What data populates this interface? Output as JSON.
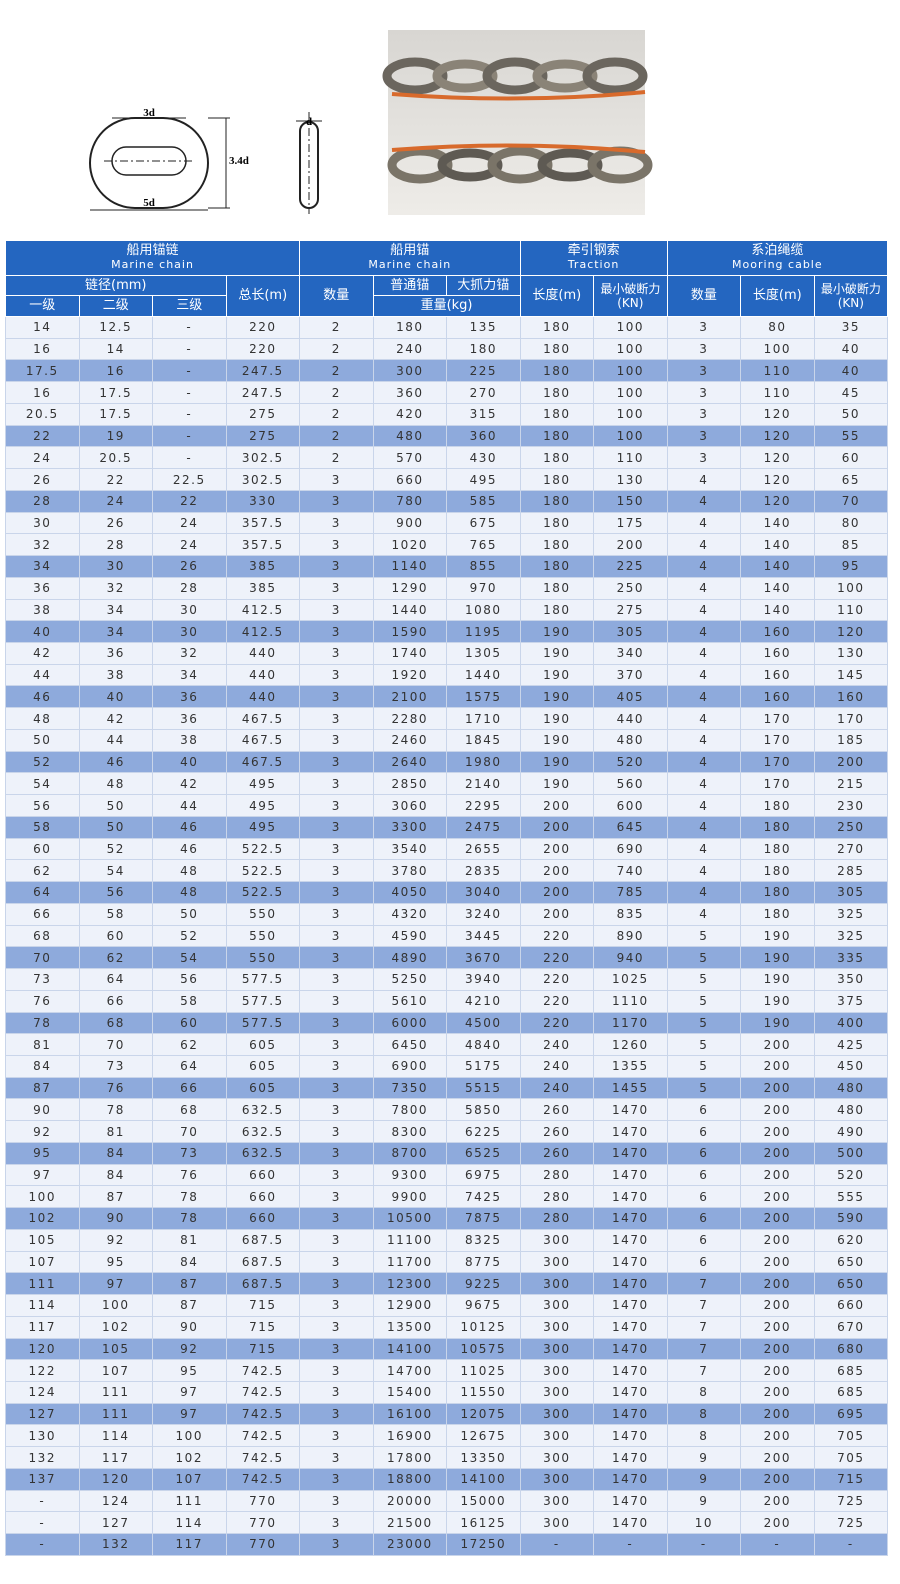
{
  "diagram": {
    "labels": [
      "3d",
      "3.4d",
      "5d",
      "d"
    ]
  },
  "table": {
    "groups": [
      {
        "zh": "船用锚链",
        "en": "Marine chain"
      },
      {
        "zh": "船用锚",
        "en": "Marine chain"
      },
      {
        "zh": "牵引钢索",
        "en": "Traction"
      },
      {
        "zh": "系泊绳缆",
        "en": "Mooring cable"
      }
    ],
    "headers": [
      "链径(mm)",
      "总长(m)",
      "数量",
      "普通锚",
      "大抓力锚",
      "长度(m)",
      "最小破断力(KN)",
      "数量",
      "长度(m)",
      "最小破断力(KN)"
    ],
    "subheaders": [
      "一级",
      "二级",
      "三级",
      "重量(kg)"
    ],
    "rows": [
      [
        "14",
        "12.5",
        "-",
        "220",
        "2",
        "180",
        "135",
        "180",
        "100",
        "3",
        "80",
        "35"
      ],
      [
        "16",
        "14",
        "-",
        "220",
        "2",
        "240",
        "180",
        "180",
        "100",
        "3",
        "100",
        "40"
      ],
      [
        "17.5",
        "16",
        "-",
        "247.5",
        "2",
        "300",
        "225",
        "180",
        "100",
        "3",
        "110",
        "40"
      ],
      [
        "16",
        "17.5",
        "-",
        "247.5",
        "2",
        "360",
        "270",
        "180",
        "100",
        "3",
        "110",
        "45"
      ],
      [
        "20.5",
        "17.5",
        "-",
        "275",
        "2",
        "420",
        "315",
        "180",
        "100",
        "3",
        "120",
        "50"
      ],
      [
        "22",
        "19",
        "-",
        "275",
        "2",
        "480",
        "360",
        "180",
        "100",
        "3",
        "120",
        "55"
      ],
      [
        "24",
        "20.5",
        "-",
        "302.5",
        "2",
        "570",
        "430",
        "180",
        "110",
        "3",
        "120",
        "60"
      ],
      [
        "26",
        "22",
        "22.5",
        "302.5",
        "3",
        "660",
        "495",
        "180",
        "130",
        "4",
        "120",
        "65"
      ],
      [
        "28",
        "24",
        "22",
        "330",
        "3",
        "780",
        "585",
        "180",
        "150",
        "4",
        "120",
        "70"
      ],
      [
        "30",
        "26",
        "24",
        "357.5",
        "3",
        "900",
        "675",
        "180",
        "175",
        "4",
        "140",
        "80"
      ],
      [
        "32",
        "28",
        "24",
        "357.5",
        "3",
        "1020",
        "765",
        "180",
        "200",
        "4",
        "140",
        "85"
      ],
      [
        "34",
        "30",
        "26",
        "385",
        "3",
        "1140",
        "855",
        "180",
        "225",
        "4",
        "140",
        "95"
      ],
      [
        "36",
        "32",
        "28",
        "385",
        "3",
        "1290",
        "970",
        "180",
        "250",
        "4",
        "140",
        "100"
      ],
      [
        "38",
        "34",
        "30",
        "412.5",
        "3",
        "1440",
        "1080",
        "180",
        "275",
        "4",
        "140",
        "110"
      ],
      [
        "40",
        "34",
        "30",
        "412.5",
        "3",
        "1590",
        "1195",
        "190",
        "305",
        "4",
        "160",
        "120"
      ],
      [
        "42",
        "36",
        "32",
        "440",
        "3",
        "1740",
        "1305",
        "190",
        "340",
        "4",
        "160",
        "130"
      ],
      [
        "44",
        "38",
        "34",
        "440",
        "3",
        "1920",
        "1440",
        "190",
        "370",
        "4",
        "160",
        "145"
      ],
      [
        "46",
        "40",
        "36",
        "440",
        "3",
        "2100",
        "1575",
        "190",
        "405",
        "4",
        "160",
        "160"
      ],
      [
        "48",
        "42",
        "36",
        "467.5",
        "3",
        "2280",
        "1710",
        "190",
        "440",
        "4",
        "170",
        "170"
      ],
      [
        "50",
        "44",
        "38",
        "467.5",
        "3",
        "2460",
        "1845",
        "190",
        "480",
        "4",
        "170",
        "185"
      ],
      [
        "52",
        "46",
        "40",
        "467.5",
        "3",
        "2640",
        "1980",
        "190",
        "520",
        "4",
        "170",
        "200"
      ],
      [
        "54",
        "48",
        "42",
        "495",
        "3",
        "2850",
        "2140",
        "190",
        "560",
        "4",
        "170",
        "215"
      ],
      [
        "56",
        "50",
        "44",
        "495",
        "3",
        "3060",
        "2295",
        "200",
        "600",
        "4",
        "180",
        "230"
      ],
      [
        "58",
        "50",
        "46",
        "495",
        "3",
        "3300",
        "2475",
        "200",
        "645",
        "4",
        "180",
        "250"
      ],
      [
        "60",
        "52",
        "46",
        "522.5",
        "3",
        "3540",
        "2655",
        "200",
        "690",
        "4",
        "180",
        "270"
      ],
      [
        "62",
        "54",
        "48",
        "522.5",
        "3",
        "3780",
        "2835",
        "200",
        "740",
        "4",
        "180",
        "285"
      ],
      [
        "64",
        "56",
        "48",
        "522.5",
        "3",
        "4050",
        "3040",
        "200",
        "785",
        "4",
        "180",
        "305"
      ],
      [
        "66",
        "58",
        "50",
        "550",
        "3",
        "4320",
        "3240",
        "200",
        "835",
        "4",
        "180",
        "325"
      ],
      [
        "68",
        "60",
        "52",
        "550",
        "3",
        "4590",
        "3445",
        "220",
        "890",
        "5",
        "190",
        "325"
      ],
      [
        "70",
        "62",
        "54",
        "550",
        "3",
        "4890",
        "3670",
        "220",
        "940",
        "5",
        "190",
        "335"
      ],
      [
        "73",
        "64",
        "56",
        "577.5",
        "3",
        "5250",
        "3940",
        "220",
        "1025",
        "5",
        "190",
        "350"
      ],
      [
        "76",
        "66",
        "58",
        "577.5",
        "3",
        "5610",
        "4210",
        "220",
        "1110",
        "5",
        "190",
        "375"
      ],
      [
        "78",
        "68",
        "60",
        "577.5",
        "3",
        "6000",
        "4500",
        "220",
        "1170",
        "5",
        "190",
        "400"
      ],
      [
        "81",
        "70",
        "62",
        "605",
        "3",
        "6450",
        "4840",
        "240",
        "1260",
        "5",
        "200",
        "425"
      ],
      [
        "84",
        "73",
        "64",
        "605",
        "3",
        "6900",
        "5175",
        "240",
        "1355",
        "5",
        "200",
        "450"
      ],
      [
        "87",
        "76",
        "66",
        "605",
        "3",
        "7350",
        "5515",
        "240",
        "1455",
        "5",
        "200",
        "480"
      ],
      [
        "90",
        "78",
        "68",
        "632.5",
        "3",
        "7800",
        "5850",
        "260",
        "1470",
        "6",
        "200",
        "480"
      ],
      [
        "92",
        "81",
        "70",
        "632.5",
        "3",
        "8300",
        "6225",
        "260",
        "1470",
        "6",
        "200",
        "490"
      ],
      [
        "95",
        "84",
        "73",
        "632.5",
        "3",
        "8700",
        "6525",
        "260",
        "1470",
        "6",
        "200",
        "500"
      ],
      [
        "97",
        "84",
        "76",
        "660",
        "3",
        "9300",
        "6975",
        "280",
        "1470",
        "6",
        "200",
        "520"
      ],
      [
        "100",
        "87",
        "78",
        "660",
        "3",
        "9900",
        "7425",
        "280",
        "1470",
        "6",
        "200",
        "555"
      ],
      [
        "102",
        "90",
        "78",
        "660",
        "3",
        "10500",
        "7875",
        "280",
        "1470",
        "6",
        "200",
        "590"
      ],
      [
        "105",
        "92",
        "81",
        "687.5",
        "3",
        "11100",
        "8325",
        "300",
        "1470",
        "6",
        "200",
        "620"
      ],
      [
        "107",
        "95",
        "84",
        "687.5",
        "3",
        "11700",
        "8775",
        "300",
        "1470",
        "6",
        "200",
        "650"
      ],
      [
        "111",
        "97",
        "87",
        "687.5",
        "3",
        "12300",
        "9225",
        "300",
        "1470",
        "7",
        "200",
        "650"
      ],
      [
        "114",
        "100",
        "87",
        "715",
        "3",
        "12900",
        "9675",
        "300",
        "1470",
        "7",
        "200",
        "660"
      ],
      [
        "117",
        "102",
        "90",
        "715",
        "3",
        "13500",
        "10125",
        "300",
        "1470",
        "7",
        "200",
        "670"
      ],
      [
        "120",
        "105",
        "92",
        "715",
        "3",
        "14100",
        "10575",
        "300",
        "1470",
        "7",
        "200",
        "680"
      ],
      [
        "122",
        "107",
        "95",
        "742.5",
        "3",
        "14700",
        "11025",
        "300",
        "1470",
        "7",
        "200",
        "685"
      ],
      [
        "124",
        "111",
        "97",
        "742.5",
        "3",
        "15400",
        "11550",
        "300",
        "1470",
        "8",
        "200",
        "685"
      ],
      [
        "127",
        "111",
        "97",
        "742.5",
        "3",
        "16100",
        "12075",
        "300",
        "1470",
        "8",
        "200",
        "695"
      ],
      [
        "130",
        "114",
        "100",
        "742.5",
        "3",
        "16900",
        "12675",
        "300",
        "1470",
        "8",
        "200",
        "705"
      ],
      [
        "132",
        "117",
        "102",
        "742.5",
        "3",
        "17800",
        "13350",
        "300",
        "1470",
        "9",
        "200",
        "705"
      ],
      [
        "137",
        "120",
        "107",
        "742.5",
        "3",
        "18800",
        "14100",
        "300",
        "1470",
        "9",
        "200",
        "715"
      ],
      [
        "-",
        "124",
        "111",
        "770",
        "3",
        "20000",
        "15000",
        "300",
        "1470",
        "9",
        "200",
        "725"
      ],
      [
        "-",
        "127",
        "114",
        "770",
        "3",
        "21500",
        "16125",
        "300",
        "1470",
        "10",
        "200",
        "725"
      ],
      [
        "-",
        "132",
        "117",
        "770",
        "3",
        "23000",
        "17250",
        "-",
        "-",
        "-",
        "-",
        "-"
      ]
    ]
  }
}
